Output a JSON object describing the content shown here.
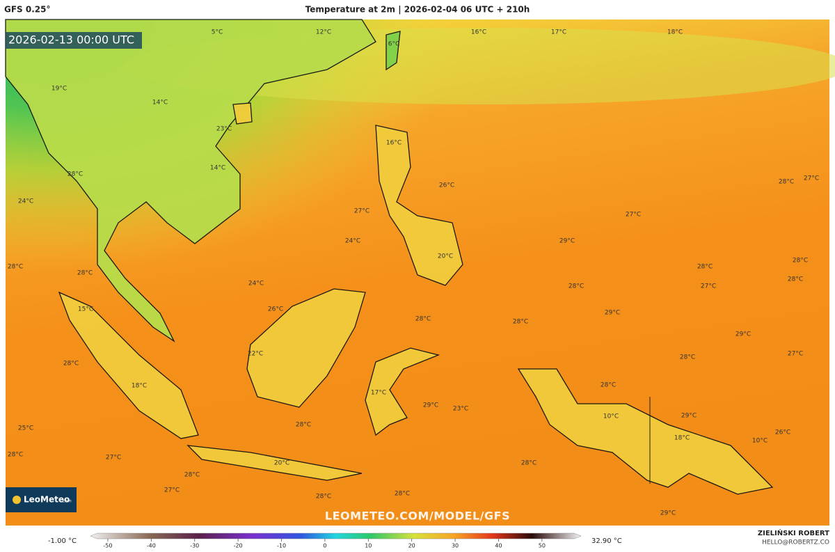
{
  "header": {
    "model": "GFS 0.25°",
    "title": "Temperature at 2m | 2026-02-04 06 UTC + 210h"
  },
  "valid_time": "2026-02-13 00:00 UTC",
  "logo": "LeoMeteo",
  "logo_sub": ".com",
  "watermark": "LEOMETEO.COM/MODEL/GFS",
  "map_labels": [
    "5°C",
    "12°C",
    "16°C",
    "17°C",
    "18°C",
    "6°C",
    "19°C",
    "14°C",
    "23°C",
    "16°C",
    "14°C",
    "28°C",
    "26°C",
    "28°C",
    "27°C",
    "24°C",
    "27°C",
    "27°C",
    "24°C",
    "29°C",
    "20°C",
    "28°C",
    "28°C",
    "28°C",
    "28°C",
    "24°C",
    "28°C",
    "27°C",
    "28°C",
    "15°C",
    "26°C",
    "29°C",
    "28°C",
    "28°C",
    "29°C",
    "22°C",
    "28°C",
    "28°C",
    "27°C",
    "28°C",
    "18°C",
    "17°C",
    "29°C",
    "23°C",
    "10°C",
    "29°C",
    "25°C",
    "28°C",
    "18°C",
    "10°C",
    "26°C",
    "28°C",
    "27°C",
    "20°C",
    "28°C",
    "28°C",
    "27°C",
    "28°C",
    "28°C",
    "29°C"
  ],
  "colorbar": {
    "min_label": "-1.00 °C",
    "max_label": "32.90 °C",
    "lim": [
      -54,
      59
    ],
    "ticks": [
      -50,
      -40,
      -30,
      -20,
      -10,
      0,
      10,
      20,
      30,
      40,
      50
    ]
  },
  "author": {
    "name": "ZIELIŃSKI ROBERT",
    "contact": "HELLO@ROBERTZ.CO"
  }
}
